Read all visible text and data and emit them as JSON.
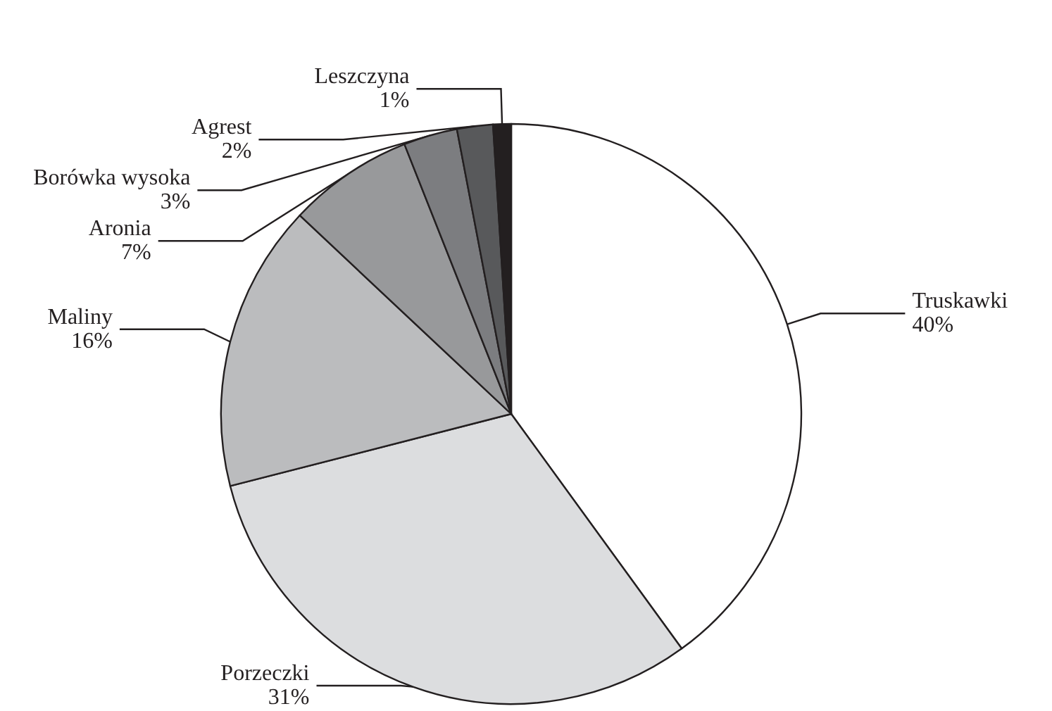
{
  "chart_data": {
    "type": "pie",
    "categories": [
      "Truskawki",
      "Porzeczki",
      "Maliny",
      "Aronia",
      "Borówka wysoka",
      "Agrest",
      "Leszczyna"
    ],
    "values": [
      40,
      31,
      16,
      7,
      3,
      2,
      1
    ],
    "value_labels": [
      "40%",
      "31%",
      "16%",
      "7%",
      "3%",
      "2%",
      "1%"
    ],
    "colors": [
      "#ffffff",
      "#dcdddf",
      "#bbbcbe",
      "#98999b",
      "#7c7d80",
      "#58595b",
      "#231f20"
    ],
    "legend": false
  }
}
